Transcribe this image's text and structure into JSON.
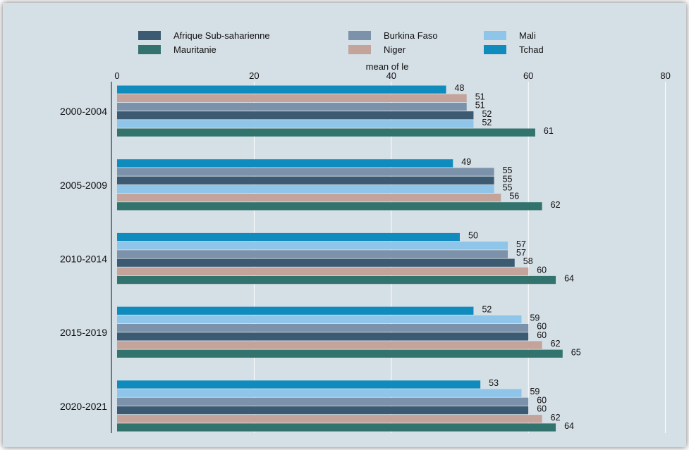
{
  "chart_data": {
    "type": "bar",
    "orientation": "horizontal",
    "title": "",
    "xlabel": "mean of le",
    "ylabel": "",
    "xlim": [
      0,
      80
    ],
    "xticks": [
      "0",
      "20",
      "40",
      "60",
      "80"
    ],
    "grid": true,
    "legend_position": "top",
    "categories": [
      "2000-2004",
      "2005-2009",
      "2010-2014",
      "2015-2019",
      "2020-2021"
    ],
    "legend": [
      {
        "name": "Afrique Sub-saharienne",
        "color": "#3d5a73"
      },
      {
        "name": "Burkina Faso",
        "color": "#7b92aa"
      },
      {
        "name": "Mali",
        "color": "#8ec5e8"
      },
      {
        "name": "Mauritanie",
        "color": "#33736d"
      },
      {
        "name": "Niger",
        "color": "#c4a39b"
      },
      {
        "name": "Tchad",
        "color": "#0f8bbd"
      }
    ],
    "groups": [
      {
        "bars": [
          {
            "series": "Tchad",
            "value": 48
          },
          {
            "series": "Niger",
            "value": 51
          },
          {
            "series": "Burkina Faso",
            "value": 51
          },
          {
            "series": "Afrique Sub-saharienne",
            "value": 52
          },
          {
            "series": "Mali",
            "value": 52
          },
          {
            "series": "Mauritanie",
            "value": 61
          }
        ]
      },
      {
        "bars": [
          {
            "series": "Tchad",
            "value": 49
          },
          {
            "series": "Burkina Faso",
            "value": 55
          },
          {
            "series": "Afrique Sub-saharienne",
            "value": 55
          },
          {
            "series": "Mali",
            "value": 55
          },
          {
            "series": "Niger",
            "value": 56
          },
          {
            "series": "Mauritanie",
            "value": 62
          }
        ]
      },
      {
        "bars": [
          {
            "series": "Tchad",
            "value": 50
          },
          {
            "series": "Mali",
            "value": 57
          },
          {
            "series": "Burkina Faso",
            "value": 57
          },
          {
            "series": "Afrique Sub-saharienne",
            "value": 58
          },
          {
            "series": "Niger",
            "value": 60
          },
          {
            "series": "Mauritanie",
            "value": 64
          }
        ]
      },
      {
        "bars": [
          {
            "series": "Tchad",
            "value": 52
          },
          {
            "series": "Mali",
            "value": 59
          },
          {
            "series": "Burkina Faso",
            "value": 60
          },
          {
            "series": "Afrique Sub-saharienne",
            "value": 60
          },
          {
            "series": "Niger",
            "value": 62
          },
          {
            "series": "Mauritanie",
            "value": 65
          }
        ]
      },
      {
        "bars": [
          {
            "series": "Tchad",
            "value": 53
          },
          {
            "series": "Mali",
            "value": 59
          },
          {
            "series": "Burkina Faso",
            "value": 60
          },
          {
            "series": "Afrique Sub-saharienne",
            "value": 60
          },
          {
            "series": "Niger",
            "value": 62
          },
          {
            "series": "Mauritanie",
            "value": 64
          }
        ]
      }
    ],
    "background_color": "#d5dfe6",
    "grid_color": "#ffffff"
  }
}
